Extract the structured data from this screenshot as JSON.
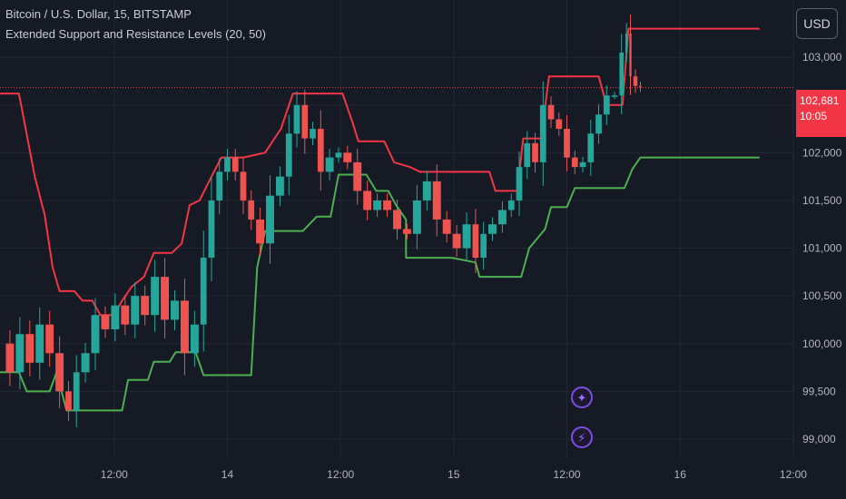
{
  "legend": {
    "symbol": "Bitcoin / U.S. Dollar, 15, BITSTAMP",
    "indicator": "Extended Support and Resistance Levels (20, 50)"
  },
  "currency_button": "USD",
  "last_price": {
    "value": "102,681",
    "countdown": "10:05"
  },
  "colors": {
    "background": "#161a25",
    "grid": "#232733",
    "resistance": "#f23645",
    "support": "#4caf50",
    "candle_up": "#26a69a",
    "candle_down": "#ef5350"
  },
  "floating_icons": [
    "sparkle-icon",
    "lightning-icon"
  ],
  "chart_data": {
    "type": "line",
    "title": "",
    "y_axis": {
      "range": [
        98800,
        103600
      ],
      "ticks": [
        99000,
        99500,
        100000,
        100500,
        101000,
        101500,
        102000,
        102500,
        103000
      ],
      "tick_labels": [
        "99,000",
        "99,500",
        "100,000",
        "100,500",
        "101,000",
        "101,500",
        "102,000",
        "102,500",
        "103,000"
      ]
    },
    "x_axis": {
      "range": [
        -5,
        795
      ],
      "ticks": [
        110,
        224,
        338,
        452,
        566,
        680,
        794
      ],
      "tick_labels": [
        "12:00",
        "14",
        "12:00",
        "15",
        "12:00",
        "16",
        "12:00"
      ]
    },
    "grid": true,
    "last_price": 102681,
    "series": [
      {
        "role": "resistance",
        "points": [
          [
            -5,
            102620
          ],
          [
            14,
            102620
          ],
          [
            20,
            102300
          ],
          [
            30,
            101750
          ],
          [
            40,
            101350
          ],
          [
            48,
            100800
          ],
          [
            55,
            100550
          ],
          [
            70,
            100550
          ],
          [
            78,
            100450
          ],
          [
            88,
            100450
          ],
          [
            96,
            100300
          ],
          [
            110,
            100300
          ],
          [
            118,
            100450
          ],
          [
            128,
            100600
          ],
          [
            140,
            100700
          ],
          [
            150,
            100950
          ],
          [
            168,
            100950
          ],
          [
            178,
            101050
          ],
          [
            186,
            101450
          ],
          [
            196,
            101500
          ],
          [
            208,
            101750
          ],
          [
            218,
            101950
          ],
          [
            240,
            101950
          ],
          [
            262,
            102000
          ],
          [
            278,
            102250
          ],
          [
            290,
            102620
          ],
          [
            340,
            102620
          ],
          [
            350,
            102320
          ],
          [
            356,
            102120
          ],
          [
            360,
            102120
          ],
          [
            382,
            102120
          ],
          [
            392,
            101900
          ],
          [
            408,
            101850
          ],
          [
            418,
            101800
          ],
          [
            428,
            101800
          ],
          [
            488,
            101800
          ],
          [
            494,
            101600
          ],
          [
            506,
            101600
          ],
          [
            516,
            101600
          ],
          [
            522,
            102150
          ],
          [
            540,
            102150
          ],
          [
            548,
            102800
          ],
          [
            598,
            102800
          ],
          [
            606,
            102500
          ],
          [
            622,
            102500
          ],
          [
            628,
            103300
          ],
          [
            760,
            103300
          ]
        ]
      },
      {
        "role": "support",
        "points": [
          [
            -5,
            99700
          ],
          [
            14,
            99700
          ],
          [
            22,
            99500
          ],
          [
            45,
            99500
          ],
          [
            52,
            99700
          ],
          [
            62,
            99300
          ],
          [
            118,
            99300
          ],
          [
            124,
            99620
          ],
          [
            144,
            99620
          ],
          [
            150,
            99810
          ],
          [
            166,
            99810
          ],
          [
            172,
            99910
          ],
          [
            192,
            99910
          ],
          [
            200,
            99670
          ],
          [
            248,
            99670
          ],
          [
            254,
            100800
          ],
          [
            262,
            101180
          ],
          [
            300,
            101180
          ],
          [
            314,
            101330
          ],
          [
            328,
            101330
          ],
          [
            336,
            101770
          ],
          [
            364,
            101770
          ],
          [
            374,
            101600
          ],
          [
            386,
            101600
          ],
          [
            394,
            101450
          ],
          [
            404,
            101300
          ],
          [
            404,
            100900
          ],
          [
            450,
            100900
          ],
          [
            474,
            100850
          ],
          [
            478,
            100700
          ],
          [
            520,
            100700
          ],
          [
            528,
            101000
          ],
          [
            544,
            101200
          ],
          [
            550,
            101430
          ],
          [
            566,
            101430
          ],
          [
            574,
            101630
          ],
          [
            582,
            101630
          ],
          [
            624,
            101630
          ],
          [
            632,
            101830
          ],
          [
            640,
            101950
          ],
          [
            760,
            101950
          ]
        ]
      },
      {
        "role": "price",
        "points": [
          [
            0,
            100000
          ],
          [
            10,
            99700
          ],
          [
            20,
            100100
          ],
          [
            30,
            99800
          ],
          [
            40,
            100200
          ],
          [
            50,
            99900
          ],
          [
            60,
            99500
          ],
          [
            68,
            99300
          ],
          [
            76,
            99700
          ],
          [
            86,
            99900
          ],
          [
            96,
            100300
          ],
          [
            106,
            100150
          ],
          [
            116,
            100400
          ],
          [
            126,
            100200
          ],
          [
            136,
            100500
          ],
          [
            146,
            100300
          ],
          [
            156,
            100700
          ],
          [
            166,
            100250
          ],
          [
            176,
            100450
          ],
          [
            186,
            99900
          ],
          [
            196,
            100200
          ],
          [
            204,
            100900
          ],
          [
            212,
            101500
          ],
          [
            220,
            101800
          ],
          [
            228,
            101950
          ],
          [
            236,
            101800
          ],
          [
            244,
            101500
          ],
          [
            252,
            101300
          ],
          [
            262,
            101050
          ],
          [
            272,
            101550
          ],
          [
            282,
            101750
          ],
          [
            290,
            102200
          ],
          [
            298,
            102500
          ],
          [
            306,
            102150
          ],
          [
            314,
            102250
          ],
          [
            322,
            101800
          ],
          [
            332,
            101950
          ],
          [
            340,
            102000
          ],
          [
            350,
            101900
          ],
          [
            360,
            101600
          ],
          [
            370,
            101400
          ],
          [
            380,
            101500
          ],
          [
            390,
            101400
          ],
          [
            400,
            101200
          ],
          [
            410,
            101150
          ],
          [
            420,
            101500
          ],
          [
            430,
            101700
          ],
          [
            440,
            101300
          ],
          [
            450,
            101150
          ],
          [
            460,
            101000
          ],
          [
            470,
            101250
          ],
          [
            478,
            100900
          ],
          [
            486,
            101150
          ],
          [
            496,
            101250
          ],
          [
            506,
            101400
          ],
          [
            514,
            101500
          ],
          [
            522,
            101850
          ],
          [
            530,
            102100
          ],
          [
            538,
            101900
          ],
          [
            546,
            102500
          ],
          [
            554,
            102350
          ],
          [
            562,
            102250
          ],
          [
            570,
            101950
          ],
          [
            578,
            101850
          ],
          [
            586,
            101900
          ],
          [
            594,
            102200
          ],
          [
            602,
            102400
          ],
          [
            610,
            102600
          ],
          [
            618,
            102600
          ],
          [
            624,
            103050
          ],
          [
            628,
            103250
          ],
          [
            632,
            102800
          ],
          [
            638,
            102700
          ],
          [
            642,
            102681
          ]
        ]
      }
    ]
  }
}
